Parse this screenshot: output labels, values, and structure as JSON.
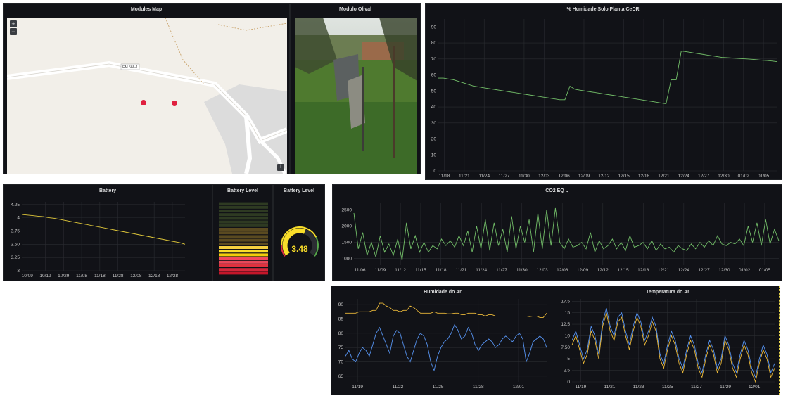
{
  "map_panel": {
    "title": "Modules Map",
    "road_label": "EM 566-1",
    "zoom_in": "+",
    "zoom_out": "−",
    "info": "i"
  },
  "photo_panel": {
    "title": "Modulo Olival"
  },
  "humidity_soil": {
    "title": "% Humidade Solo Planta CeDRI",
    "chart_data": {
      "type": "line",
      "x_ticks": [
        "11/18",
        "11/21",
        "11/24",
        "11/27",
        "11/30",
        "12/03",
        "12/06",
        "12/09",
        "12/12",
        "12/15",
        "12/18",
        "12/21",
        "12/24",
        "12/27",
        "12/30",
        "01/02",
        "01/05"
      ],
      "y_ticks": [
        "0",
        "10",
        "20",
        "30",
        "40",
        "50",
        "60",
        "70",
        "80",
        "90"
      ],
      "ylim": [
        0,
        95
      ],
      "series": [
        {
          "color": "#73bf69",
          "values": [
            58,
            58,
            57.5,
            57,
            56,
            55,
            54,
            53,
            52.5,
            52,
            51.5,
            51,
            50.5,
            50,
            49.5,
            49,
            48.5,
            48,
            47.5,
            47,
            46.5,
            46,
            45.5,
            45,
            44.5,
            44.5,
            53,
            51,
            50.5,
            50,
            49.5,
            49,
            48.5,
            48,
            47.5,
            47,
            46.5,
            46,
            45.5,
            45,
            44.5,
            44,
            43.5,
            43,
            42.5,
            42,
            57,
            57,
            75,
            74.5,
            74,
            73.5,
            73,
            72.5,
            72,
            71.5,
            71,
            70.8,
            70.6,
            70.4,
            70.2,
            70,
            69.8,
            69.5,
            69.2,
            69,
            68.7,
            68.3
          ]
        }
      ]
    }
  },
  "battery": {
    "title": "Battery",
    "chart_data": {
      "type": "line",
      "x_ticks": [
        "10/09",
        "10/19",
        "10/29",
        "11/08",
        "11/18",
        "11/28",
        "12/08",
        "12/18",
        "12/28"
      ],
      "y_ticks": [
        "3",
        "3.25",
        "3.50",
        "3.75",
        "4",
        "4.25"
      ],
      "ylim": [
        3,
        4.3
      ],
      "series": [
        {
          "color": "#e0c83a",
          "values": [
            4.06,
            4.05,
            4.04,
            4.03,
            4.02,
            4.0,
            3.99,
            3.97,
            3.95,
            3.93,
            3.91,
            3.89,
            3.87,
            3.85,
            3.83,
            3.81,
            3.79,
            3.77,
            3.75,
            3.73,
            3.71,
            3.69,
            3.67,
            3.65,
            3.63,
            3.61,
            3.59,
            3.57,
            3.55,
            3.53,
            3.5
          ]
        }
      ]
    }
  },
  "battery_bar": {
    "title": "Battery Level",
    "dash": "-",
    "lit_segments": 8,
    "total_segments": 20
  },
  "battery_gauge": {
    "title": "Battery Level",
    "value": "3.48",
    "fraction": 0.58
  },
  "co2": {
    "title": "CO2 EQ",
    "title_suffix": "⌄",
    "chart_data": {
      "type": "line",
      "x_ticks": [
        "11/06",
        "11/09",
        "11/12",
        "11/15",
        "11/18",
        "11/21",
        "11/24",
        "11/27",
        "11/30",
        "12/03",
        "12/06",
        "12/09",
        "12/12",
        "12/15",
        "12/18",
        "12/21",
        "12/24",
        "12/27",
        "12/30",
        "01/02",
        "01/05"
      ],
      "y_ticks": [
        "1000",
        "1500",
        "2000",
        "2500"
      ],
      "ylim": [
        800,
        2700
      ],
      "series": [
        {
          "color": "#73bf69",
          "values": [
            2400,
            1300,
            1800,
            1100,
            1500,
            1050,
            1700,
            1200,
            1450,
            1100,
            1600,
            950,
            2100,
            1300,
            1700,
            1200,
            1500,
            1200,
            1400,
            1300,
            1600,
            1400,
            1550,
            1350,
            1700,
            1400,
            1850,
            1200,
            2000,
            1300,
            2200,
            1250,
            2100,
            1400,
            1900,
            1200,
            2300,
            1300,
            2000,
            1500,
            2200,
            1200,
            2400,
            1300,
            2500,
            1400,
            2550,
            1500,
            1300,
            1600,
            1350,
            1400,
            1500,
            1300,
            1800,
            1200,
            1550,
            1300,
            1400,
            1600,
            1300,
            1500,
            1250,
            1700,
            1350,
            1400,
            1500,
            1300,
            1550,
            1250,
            1450,
            1300,
            1350,
            1200,
            1400,
            1300,
            1250,
            1450,
            1300,
            1500,
            1350,
            1550,
            1400,
            1700,
            1450,
            1400,
            1500,
            1450,
            1600,
            1400,
            2000,
            1500,
            2100,
            1400,
            2200,
            1450,
            1900,
            1550
          ]
        }
      ]
    }
  },
  "humidity_air": {
    "title": "Humidade do Ar",
    "chart_data": {
      "type": "line",
      "x_ticks": [
        "11/19",
        "11/22",
        "11/25",
        "11/28",
        "12/01"
      ],
      "y_ticks": [
        "65",
        "70",
        "75",
        "80",
        "85",
        "90"
      ],
      "ylim": [
        63,
        92
      ],
      "series": [
        {
          "color": "#eab839",
          "values": [
            87,
            87,
            87,
            87,
            87.5,
            87.5,
            87.5,
            87.5,
            88,
            88,
            90.5,
            90.5,
            89.5,
            89,
            88,
            88,
            87.5,
            88,
            88,
            89.5,
            89,
            88,
            87,
            87,
            87,
            87,
            87.5,
            87,
            87,
            87,
            86.8,
            86.8,
            87,
            87,
            86.5,
            86.5,
            87,
            87,
            87,
            86.5,
            86.5,
            86,
            86.5,
            86.5,
            86,
            86,
            86,
            86,
            86,
            86,
            86,
            86,
            86,
            86,
            85.8,
            86,
            86,
            85.5,
            85.5,
            87
          ]
        },
        {
          "color": "#5794f2",
          "values": [
            72,
            74,
            71,
            70,
            73,
            75,
            74,
            72,
            76,
            80,
            82,
            79,
            76,
            73,
            79,
            81,
            80,
            76,
            72,
            70,
            74,
            78,
            80,
            79,
            76,
            70,
            67,
            72,
            75,
            77,
            78,
            80,
            83,
            81,
            78,
            79,
            82,
            80,
            76,
            74,
            76,
            77,
            78,
            77,
            75,
            76,
            78,
            79,
            78,
            77,
            79,
            80,
            78,
            70,
            73,
            77,
            78,
            79,
            78,
            75
          ]
        }
      ]
    }
  },
  "temperature": {
    "title": "Temperatura do Ar",
    "chart_data": {
      "type": "line",
      "x_ticks": [
        "11/19",
        "11/21",
        "11/23",
        "11/25",
        "11/27",
        "11/29",
        "12/01"
      ],
      "y_ticks": [
        "0",
        "2.5",
        "5",
        "7.50",
        "10",
        "12.5",
        "15",
        "17.5"
      ],
      "ylim": [
        0,
        18
      ],
      "series": [
        {
          "color": "#5794f2",
          "values": [
            9,
            11,
            8,
            5,
            7,
            12,
            10,
            6,
            13,
            16,
            12,
            10,
            14,
            15,
            11,
            8,
            12,
            15,
            13,
            9,
            11,
            14,
            12,
            6,
            4,
            8,
            11,
            9,
            5,
            3,
            7,
            10,
            8,
            4,
            2,
            6,
            9,
            7,
            3,
            5,
            10,
            8,
            4,
            2,
            6,
            9,
            7,
            3,
            1,
            5,
            8,
            6,
            2,
            4
          ]
        },
        {
          "color": "#eab839",
          "values": [
            8,
            10,
            7,
            4,
            6,
            11,
            9,
            5,
            12,
            15,
            11,
            9,
            13,
            14,
            10,
            7,
            11,
            14,
            12,
            8,
            10,
            13,
            11,
            5,
            3,
            7,
            10,
            8,
            4,
            2,
            6,
            9,
            7,
            3,
            1,
            5,
            8,
            6,
            2,
            4,
            9,
            7,
            3,
            1,
            5,
            8,
            6,
            2,
            0,
            4,
            7,
            5,
            1,
            3
          ]
        }
      ]
    }
  }
}
